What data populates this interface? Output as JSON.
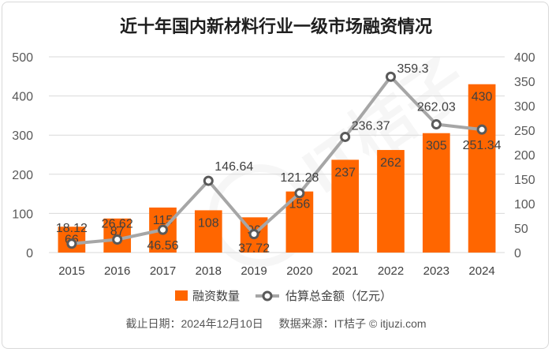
{
  "chart_data": {
    "type": "bar+line",
    "title": "近十年国内新材料行业一级市场融资情况",
    "categories": [
      "2015",
      "2016",
      "2017",
      "2018",
      "2019",
      "2020",
      "2021",
      "2022",
      "2023",
      "2024"
    ],
    "series": [
      {
        "name": "融资数量",
        "type": "bar",
        "axis": "left",
        "color": "#FF6600",
        "values": [
          66,
          87,
          115,
          108,
          90,
          156,
          237,
          262,
          305,
          430
        ]
      },
      {
        "name": "估算总金额（亿元）",
        "type": "line",
        "axis": "right",
        "color": "#A6A6A6",
        "values": [
          18.12,
          26.62,
          46.56,
          146.64,
          37.72,
          121.28,
          236.37,
          359.3,
          262.03,
          251.34
        ]
      }
    ],
    "left_axis": {
      "min": 0,
      "max": 500,
      "ticks": [
        0,
        100,
        200,
        300,
        400,
        500
      ]
    },
    "right_axis": {
      "min": 0,
      "max": 400,
      "ticks": [
        0,
        50,
        100,
        150,
        200,
        250,
        300,
        350,
        400
      ]
    },
    "bar_labels": [
      "66",
      "87",
      "115",
      "108",
      "90",
      "156",
      "237",
      "262",
      "305",
      "430"
    ],
    "line_labels": [
      "18.12",
      "26.62",
      "46.56",
      "146.64",
      "37.72",
      "121.28",
      "236.37",
      "359.3",
      "262.03",
      "251.34"
    ],
    "legend": {
      "position": "bottom",
      "items": [
        "融资数量",
        "估算总金额（亿元）"
      ]
    },
    "grid": true
  },
  "footer": {
    "date": "截止日期：2024年12月10日",
    "source": "数据来源：IT桔子 © itjuzi.com"
  },
  "watermark_text": "IT桔子",
  "colors": {
    "bar": "#FF6600",
    "line": "#A6A6A6",
    "marker_stroke": "#595959"
  }
}
